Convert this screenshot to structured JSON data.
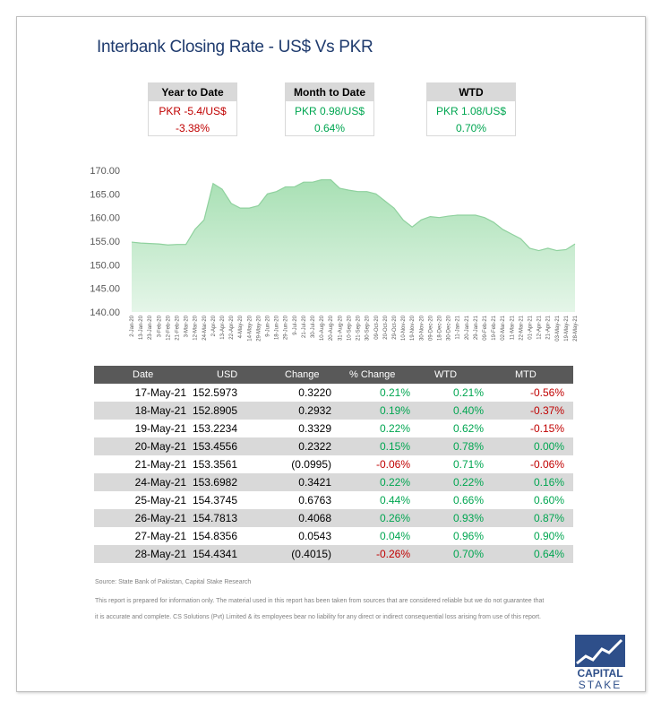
{
  "header": {
    "title": "Interbank Closing Rate - US$ Vs PKR"
  },
  "kpis": [
    {
      "title": "Year to Date",
      "line1": "PKR -5.4/US$",
      "line2": "-3.38%",
      "color": "#c00000"
    },
    {
      "title": "Month to Date",
      "line1": "PKR 0.98/US$",
      "line2": "0.64%",
      "color": "#00a651"
    },
    {
      "title": "WTD",
      "line1": "PKR 1.08/US$",
      "line2": "0.70%",
      "color": "#00a651"
    }
  ],
  "chart_data": {
    "type": "area",
    "color": "#a8e0b4",
    "line_color": "#8fd19e",
    "categories": [
      "2-Jan-20",
      "13-Jan-20",
      "23-Jan-20",
      "3-Feb-20",
      "12-Feb-20",
      "21-Feb-20",
      "3-Mar-20",
      "12-Mar-20",
      "24-Mar-20",
      "2-Apr-20",
      "13-Apr-20",
      "22-Apr-20",
      "4-May-20",
      "14-May-20",
      "29-May-20",
      "9-Jun-20",
      "18-Jun-20",
      "29-Jun-20",
      "9-Jul-20",
      "21-Jul-20",
      "30-Jul-20",
      "10-Aug-20",
      "20-Aug-20",
      "31-Aug-20",
      "10-Sep-20",
      "21-Sep-20",
      "30-Sep-20",
      "09-Oct-20",
      "20-Oct-20",
      "29-Oct-20",
      "10-Nov-20",
      "19-Nov-20",
      "30-Nov-20",
      "09-Dec-20",
      "18-Dec-20",
      "30-Dec-20",
      "11-Jan-21",
      "20-Jan-21",
      "29-Jan-21",
      "09-Feb-21",
      "19-Feb-21",
      "02-Mar-21",
      "11-Mar-21",
      "22-Mar-21",
      "01-Apr-21",
      "12-Apr-21",
      "21-Apr-21",
      "03-May-21",
      "19-May-21",
      "28-May-21"
    ],
    "values": [
      154.8,
      154.6,
      154.5,
      154.4,
      154.2,
      154.3,
      154.3,
      157.5,
      159.5,
      167.2,
      166.0,
      163.0,
      162.0,
      162.0,
      162.5,
      165.0,
      165.5,
      166.5,
      166.5,
      167.5,
      167.5,
      168.0,
      168.0,
      166.2,
      165.8,
      165.5,
      165.5,
      165.0,
      163.5,
      162.0,
      159.5,
      158.0,
      159.5,
      160.2,
      160.0,
      160.3,
      160.5,
      160.5,
      160.5,
      160.0,
      159.0,
      157.5,
      156.5,
      155.5,
      153.5,
      153.0,
      153.5,
      153.0,
      153.2,
      154.4
    ],
    "ylim": [
      140,
      170
    ],
    "yticks": [
      {
        "value": 140,
        "label": "140.00"
      },
      {
        "value": 145,
        "label": "145.00"
      },
      {
        "value": 150,
        "label": "150.00"
      },
      {
        "value": 155,
        "label": "155.00"
      },
      {
        "value": 160,
        "label": "160.00"
      },
      {
        "value": 165,
        "label": "165.00"
      },
      {
        "value": 170,
        "label": "170.00"
      }
    ]
  },
  "table": {
    "headers": [
      "Date",
      "USD",
      "Change",
      "% Change",
      "WTD",
      "MTD"
    ],
    "rows": [
      [
        "17-May-21",
        "152.5973",
        "0.3220",
        "0.21%",
        "0.21%",
        "-0.56%"
      ],
      [
        "18-May-21",
        "152.8905",
        "0.2932",
        "0.19%",
        "0.40%",
        "-0.37%"
      ],
      [
        "19-May-21",
        "153.2234",
        "0.3329",
        "0.22%",
        "0.62%",
        "-0.15%"
      ],
      [
        "20-May-21",
        "153.4556",
        "0.2322",
        "0.15%",
        "0.78%",
        "0.00%"
      ],
      [
        "21-May-21",
        "153.3561",
        "(0.0995)",
        "-0.06%",
        "0.71%",
        "-0.06%"
      ],
      [
        "24-May-21",
        "153.6982",
        "0.3421",
        "0.22%",
        "0.22%",
        "0.16%"
      ],
      [
        "25-May-21",
        "154.3745",
        "0.6763",
        "0.44%",
        "0.66%",
        "0.60%"
      ],
      [
        "26-May-21",
        "154.7813",
        "0.4068",
        "0.26%",
        "0.93%",
        "0.87%"
      ],
      [
        "27-May-21",
        "154.8356",
        "0.0543",
        "0.04%",
        "0.96%",
        "0.90%"
      ],
      [
        "28-May-21",
        "154.4341",
        "(0.4015)",
        "-0.26%",
        "0.70%",
        "0.64%"
      ]
    ]
  },
  "footer": {
    "source": "Source: State Bank of Pakistan, Capital Stake Research",
    "disclaimer1": "This report is prepared for information only. The material used in this report has been taken from sources that are considered reliable but we do not guarantee that",
    "disclaimer2": "it is accurate and complete. CS Solutions (Pvt) Limited & its employees bear no liability for any direct or indirect consequential loss arising from use of this report."
  },
  "logo": {
    "line1": "CAPITAL",
    "line2": "STAKE"
  }
}
